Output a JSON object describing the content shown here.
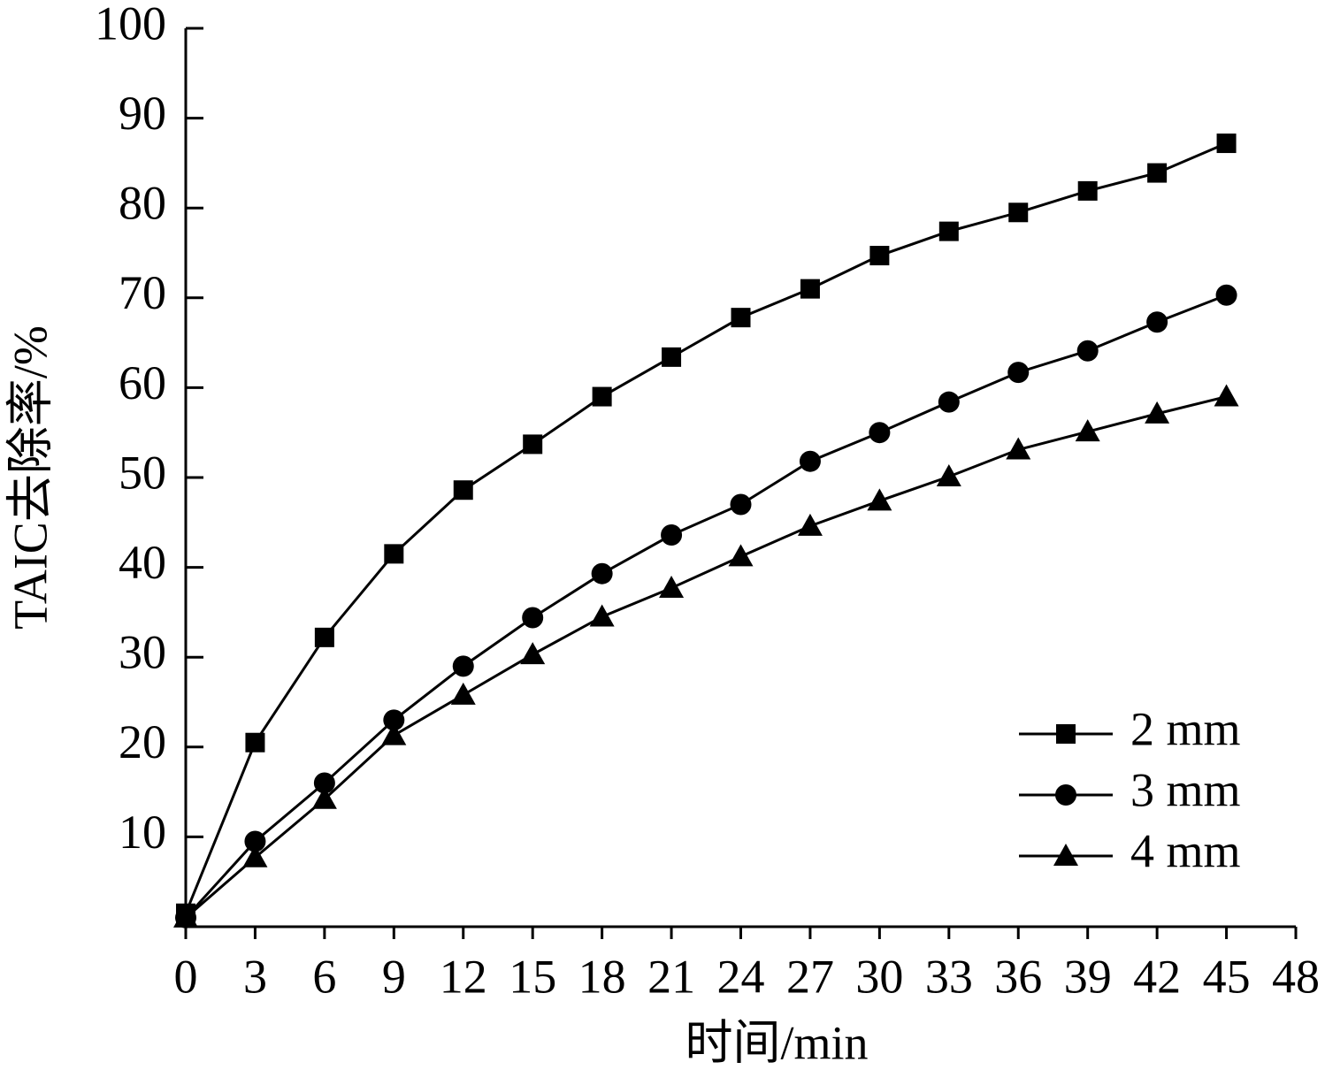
{
  "chart_data": {
    "type": "line",
    "x_label": "时间/min",
    "y_label": "TAIC去除率/%",
    "x": [
      0,
      3,
      6,
      9,
      12,
      15,
      18,
      21,
      24,
      27,
      30,
      33,
      36,
      39,
      42,
      45
    ],
    "series": [
      {
        "name": "2 mm",
        "color": "#000000",
        "marker": "square",
        "values": [
          1.5,
          20.5,
          32.2,
          41.5,
          48.6,
          53.7,
          59,
          63.4,
          67.8,
          71,
          74.7,
          77.4,
          79.5,
          81.9,
          83.9,
          87.2
        ]
      },
      {
        "name": "3 mm",
        "color": "#000000",
        "marker": "circle",
        "values": [
          1,
          9.5,
          16,
          23,
          29,
          34.4,
          39.3,
          43.6,
          47,
          51.8,
          55,
          58.4,
          61.7,
          64.1,
          67.3,
          70.3
        ]
      },
      {
        "name": "4 mm",
        "color": "#000000",
        "marker": "triangle",
        "values": [
          1,
          7.7,
          14.2,
          21.3,
          25.8,
          30.3,
          34.5,
          37.7,
          41.2,
          44.6,
          47.4,
          50.1,
          53.1,
          55.1,
          57.1,
          59
        ]
      }
    ],
    "xlim": [
      0,
      48
    ],
    "xticks": [
      0,
      3,
      6,
      9,
      12,
      15,
      18,
      21,
      24,
      27,
      30,
      33,
      36,
      39,
      42,
      45,
      48
    ],
    "ylim": [
      0,
      100
    ],
    "yticks": [
      10,
      20,
      30,
      40,
      50,
      60,
      70,
      80,
      90,
      100
    ],
    "grid": false,
    "legend": "lower right"
  }
}
